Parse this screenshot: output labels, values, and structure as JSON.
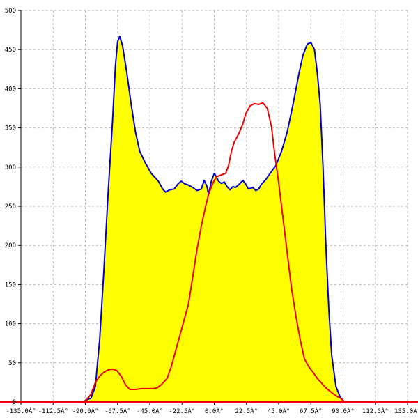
{
  "chart_data": {
    "type": "area",
    "title": "",
    "xlabel": "",
    "ylabel": "",
    "xlim": [
      -135,
      135
    ],
    "ylim": [
      0,
      500
    ],
    "grid": true,
    "x_ticks": [
      {
        "value": -135,
        "label": "-135.0Â°"
      },
      {
        "value": -112.5,
        "label": "-112.5Â°"
      },
      {
        "value": -90,
        "label": "-90.0Â°"
      },
      {
        "value": -67.5,
        "label": "-67.5Â°"
      },
      {
        "value": -45,
        "label": "-45.0Â°"
      },
      {
        "value": -22.5,
        "label": "-22.5Â°"
      },
      {
        "value": 0,
        "label": "0.0Â°"
      },
      {
        "value": 22.5,
        "label": "22.5Â°"
      },
      {
        "value": 45,
        "label": "45.0Â°"
      },
      {
        "value": 67.5,
        "label": "67.5Â°"
      },
      {
        "value": 90,
        "label": "90.0Â°"
      },
      {
        "value": 112.5,
        "label": "112.5Â°"
      },
      {
        "value": 135,
        "label": "135.0Â°"
      }
    ],
    "y_ticks": [
      {
        "value": 0,
        "label": "0"
      },
      {
        "value": 50,
        "label": "50"
      },
      {
        "value": 100,
        "label": "100"
      },
      {
        "value": 150,
        "label": "150"
      },
      {
        "value": 200,
        "label": "200"
      },
      {
        "value": 250,
        "label": "250"
      },
      {
        "value": 300,
        "label": "300"
      },
      {
        "value": 350,
        "label": "350"
      },
      {
        "value": 400,
        "label": "400"
      },
      {
        "value": 450,
        "label": "450"
      },
      {
        "value": 500,
        "label": "500"
      }
    ],
    "colors": {
      "fill": "#ffff00",
      "series_a": "#0000cc",
      "series_b": "#ee0000",
      "grid": "#bbbbbb",
      "axis": "#000000",
      "baseline": "#ee0000"
    },
    "series": [
      {
        "points": [
          [
            -135,
            0
          ],
          [
            -91,
            0
          ],
          [
            -90,
            2
          ],
          [
            -86,
            5
          ],
          [
            -83,
            20
          ],
          [
            -80,
            80
          ],
          [
            -77,
            170
          ],
          [
            -74,
            270
          ],
          [
            -71,
            360
          ],
          [
            -69,
            430
          ],
          [
            -67.5,
            460
          ],
          [
            -66,
            467
          ],
          [
            -64,
            455
          ],
          [
            -61,
            420
          ],
          [
            -58,
            380
          ],
          [
            -55,
            345
          ],
          [
            -52,
            320
          ],
          [
            -48,
            305
          ],
          [
            -44,
            292
          ],
          [
            -39,
            282
          ],
          [
            -36,
            272
          ],
          [
            -34,
            268
          ],
          [
            -31,
            271
          ],
          [
            -28,
            272
          ],
          [
            -25,
            279
          ],
          [
            -23,
            282
          ],
          [
            -21,
            279
          ],
          [
            -18,
            277
          ],
          [
            -15,
            274
          ],
          [
            -12,
            270
          ],
          [
            -9,
            272
          ],
          [
            -7,
            283
          ],
          [
            -5,
            275
          ],
          [
            -4,
            265
          ],
          [
            -2,
            282
          ],
          [
            0,
            292
          ],
          [
            1,
            289
          ],
          [
            3,
            282
          ],
          [
            5,
            279
          ],
          [
            7,
            281
          ],
          [
            9,
            275
          ],
          [
            11,
            271
          ],
          [
            13,
            275
          ],
          [
            15,
            274
          ],
          [
            18,
            279
          ],
          [
            20,
            283
          ],
          [
            22,
            278
          ],
          [
            24,
            272
          ],
          [
            27,
            274
          ],
          [
            29,
            270
          ],
          [
            31,
            272
          ],
          [
            33,
            278
          ],
          [
            36,
            284
          ],
          [
            39,
            292
          ],
          [
            43,
            302
          ],
          [
            47,
            320
          ],
          [
            51,
            345
          ],
          [
            55,
            380
          ],
          [
            59,
            418
          ],
          [
            62,
            443
          ],
          [
            65,
            457
          ],
          [
            67.5,
            459
          ],
          [
            70,
            450
          ],
          [
            72,
            420
          ],
          [
            74,
            380
          ],
          [
            76,
            300
          ],
          [
            78,
            200
          ],
          [
            80,
            120
          ],
          [
            82,
            60
          ],
          [
            85,
            20
          ],
          [
            88,
            6
          ],
          [
            90,
            2
          ],
          [
            91,
            0
          ],
          [
            135,
            0
          ]
        ]
      },
      {
        "points": [
          [
            -135,
            0
          ],
          [
            -91,
            0
          ],
          [
            -90,
            1
          ],
          [
            -86,
            10
          ],
          [
            -83,
            25
          ],
          [
            -80,
            33
          ],
          [
            -77,
            38
          ],
          [
            -74,
            41
          ],
          [
            -71,
            42
          ],
          [
            -68,
            40
          ],
          [
            -65,
            33
          ],
          [
            -62,
            22
          ],
          [
            -59,
            16
          ],
          [
            -55,
            16
          ],
          [
            -51,
            17
          ],
          [
            -47,
            17
          ],
          [
            -43,
            17
          ],
          [
            -40,
            18
          ],
          [
            -37,
            22
          ],
          [
            -33,
            30
          ],
          [
            -30,
            45
          ],
          [
            -27,
            65
          ],
          [
            -24,
            85
          ],
          [
            -21,
            105
          ],
          [
            -18,
            125
          ],
          [
            -15,
            160
          ],
          [
            -12,
            195
          ],
          [
            -9,
            225
          ],
          [
            -6,
            250
          ],
          [
            -4,
            265
          ],
          [
            -2,
            275
          ],
          [
            0,
            283
          ],
          [
            2,
            288
          ],
          [
            5,
            290
          ],
          [
            8,
            292
          ],
          [
            10,
            302
          ],
          [
            12,
            320
          ],
          [
            14,
            332
          ],
          [
            17,
            342
          ],
          [
            20,
            355
          ],
          [
            22,
            368
          ],
          [
            25,
            378
          ],
          [
            28,
            381
          ],
          [
            31,
            380
          ],
          [
            34,
            382
          ],
          [
            37,
            375
          ],
          [
            40,
            352
          ],
          [
            42,
            320
          ],
          [
            45,
            280
          ],
          [
            48,
            235
          ],
          [
            51,
            190
          ],
          [
            54,
            145
          ],
          [
            57,
            110
          ],
          [
            60,
            80
          ],
          [
            63,
            55
          ],
          [
            66,
            45
          ],
          [
            69,
            38
          ],
          [
            72,
            30
          ],
          [
            75,
            24
          ],
          [
            78,
            18
          ],
          [
            82,
            12
          ],
          [
            85,
            8
          ],
          [
            88,
            5
          ],
          [
            90,
            2
          ],
          [
            91,
            0
          ],
          [
            135,
            0
          ]
        ]
      }
    ]
  }
}
